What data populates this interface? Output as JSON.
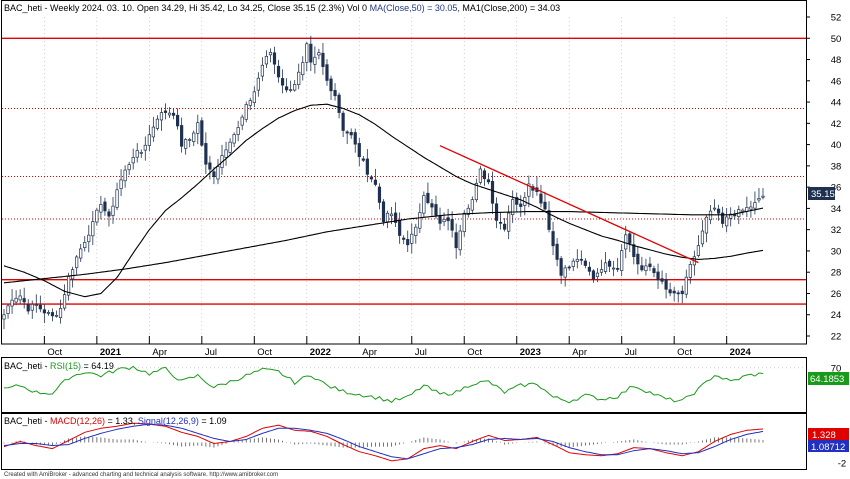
{
  "chart_data": {
    "type": "candlestick",
    "symbol": "BAC_heti",
    "header": {
      "prefix": "BAC_heti - Weekly 2024. 03. 10. Open 34.29, Hi 35.42, Lo 34.25, Close 35.15 (2.3%) Vol 0 ",
      "ma_label": "MA(Close,50) = 30.05,",
      "ma200_label": " MA1(Close,200) = 34.03"
    },
    "price_axis": {
      "ticks": [
        22,
        24,
        26,
        28,
        30,
        32,
        34,
        36,
        38,
        40,
        42,
        44,
        46,
        48,
        50,
        52
      ],
      "last_label": "35.15",
      "ymin": 20.5,
      "ymax": 53.5
    },
    "x_axis": {
      "labels": [
        {
          "text": "Oct",
          "week": 10,
          "bold": false
        },
        {
          "text": "2021",
          "week": 23,
          "bold": true
        },
        {
          "text": "Apr",
          "week": 36,
          "bold": false
        },
        {
          "text": "Jul",
          "week": 49,
          "bold": false
        },
        {
          "text": "Oct",
          "week": 62,
          "bold": false
        },
        {
          "text": "2022",
          "week": 75,
          "bold": true
        },
        {
          "text": "Apr",
          "week": 88,
          "bold": false
        },
        {
          "text": "Jul",
          "week": 101,
          "bold": false
        },
        {
          "text": "Oct",
          "week": 114,
          "bold": false
        },
        {
          "text": "2023",
          "week": 127,
          "bold": true
        },
        {
          "text": "Apr",
          "week": 140,
          "bold": false
        },
        {
          "text": "Jul",
          "week": 153,
          "bold": false
        },
        {
          "text": "Oct",
          "week": 166,
          "bold": false
        },
        {
          "text": "2024",
          "week": 179,
          "bold": true
        }
      ],
      "weeks": 189
    },
    "horizontal_levels": [
      {
        "value": 50.0,
        "style": "solid"
      },
      {
        "value": 43.4,
        "style": "dotted"
      },
      {
        "value": 37.0,
        "style": "dotted"
      },
      {
        "value": 33.0,
        "style": "dotted"
      },
      {
        "value": 27.3,
        "style": "solid"
      },
      {
        "value": 25.0,
        "style": "solid"
      }
    ],
    "trendline": {
      "from": {
        "week": 108,
        "value": 39.9
      },
      "to": {
        "week": 172,
        "value": 28.9
      }
    },
    "close_anchors": [
      [
        0,
        24.0
      ],
      [
        2,
        25.6
      ],
      [
        4,
        25.8
      ],
      [
        6,
        24.6
      ],
      [
        8,
        24.9
      ],
      [
        10,
        24.3
      ],
      [
        12,
        23.8
      ],
      [
        14,
        24.6
      ],
      [
        16,
        27.5
      ],
      [
        18,
        29.4
      ],
      [
        20,
        31.0
      ],
      [
        22,
        32.5
      ],
      [
        24,
        34.6
      ],
      [
        26,
        33.0
      ],
      [
        28,
        35.8
      ],
      [
        30,
        37.5
      ],
      [
        32,
        39.0
      ],
      [
        34,
        39.3
      ],
      [
        36,
        40.9
      ],
      [
        38,
        42.6
      ],
      [
        40,
        43.1
      ],
      [
        42,
        43.0
      ],
      [
        44,
        40.0
      ],
      [
        46,
        40.5
      ],
      [
        48,
        42.0
      ],
      [
        50,
        38.0
      ],
      [
        52,
        37.2
      ],
      [
        54,
        39.0
      ],
      [
        56,
        40.5
      ],
      [
        58,
        41.5
      ],
      [
        60,
        43.5
      ],
      [
        62,
        45.0
      ],
      [
        64,
        47.5
      ],
      [
        66,
        48.7
      ],
      [
        68,
        46.5
      ],
      [
        70,
        45.0
      ],
      [
        72,
        45.8
      ],
      [
        74,
        47.5
      ],
      [
        75,
        49.2
      ],
      [
        76,
        47.5
      ],
      [
        78,
        48.5
      ],
      [
        80,
        46.0
      ],
      [
        82,
        44.7
      ],
      [
        84,
        41.5
      ],
      [
        86,
        40.8
      ],
      [
        88,
        39.0
      ],
      [
        90,
        37.5
      ],
      [
        92,
        36.2
      ],
      [
        94,
        33.0
      ],
      [
        96,
        33.5
      ],
      [
        98,
        31.4
      ],
      [
        100,
        30.8
      ],
      [
        102,
        32.0
      ],
      [
        104,
        35.5
      ],
      [
        106,
        34.0
      ],
      [
        108,
        32.5
      ],
      [
        110,
        33.0
      ],
      [
        112,
        30.5
      ],
      [
        114,
        33.8
      ],
      [
        116,
        34.8
      ],
      [
        118,
        37.5
      ],
      [
        120,
        36.5
      ],
      [
        122,
        33.0
      ],
      [
        124,
        32.3
      ],
      [
        126,
        35.0
      ],
      [
        128,
        34.0
      ],
      [
        130,
        36.5
      ],
      [
        132,
        35.5
      ],
      [
        134,
        34.0
      ],
      [
        136,
        30.5
      ],
      [
        138,
        28.0
      ],
      [
        140,
        28.5
      ],
      [
        142,
        29.3
      ],
      [
        144,
        28.5
      ],
      [
        146,
        27.5
      ],
      [
        148,
        28.5
      ],
      [
        150,
        28.8
      ],
      [
        152,
        28.5
      ],
      [
        154,
        31.8
      ],
      [
        156,
        29.5
      ],
      [
        158,
        28.2
      ],
      [
        160,
        28.5
      ],
      [
        162,
        27.5
      ],
      [
        164,
        26.3
      ],
      [
        166,
        25.8
      ],
      [
        168,
        26.0
      ],
      [
        170,
        28.5
      ],
      [
        172,
        30.5
      ],
      [
        174,
        33.0
      ],
      [
        176,
        34.0
      ],
      [
        178,
        32.5
      ],
      [
        180,
        33.5
      ],
      [
        182,
        33.6
      ],
      [
        184,
        34.0
      ],
      [
        186,
        34.4
      ],
      [
        188,
        35.15
      ]
    ],
    "ma_50": [
      [
        0,
        28.6
      ],
      [
        5,
        28.0
      ],
      [
        10,
        27.2
      ],
      [
        15,
        26.2
      ],
      [
        20,
        25.7
      ],
      [
        24,
        26.0
      ],
      [
        28,
        27.5
      ],
      [
        32,
        29.8
      ],
      [
        36,
        32.0
      ],
      [
        40,
        33.8
      ],
      [
        44,
        35.0
      ],
      [
        48,
        36.3
      ],
      [
        52,
        37.7
      ],
      [
        56,
        39.0
      ],
      [
        60,
        40.4
      ],
      [
        64,
        41.5
      ],
      [
        68,
        42.5
      ],
      [
        72,
        43.2
      ],
      [
        76,
        43.7
      ],
      [
        80,
        43.8
      ],
      [
        84,
        43.4
      ],
      [
        88,
        42.8
      ],
      [
        92,
        41.9
      ],
      [
        96,
        40.8
      ],
      [
        100,
        39.8
      ],
      [
        104,
        38.8
      ],
      [
        108,
        37.9
      ],
      [
        112,
        37.0
      ],
      [
        116,
        36.3
      ],
      [
        120,
        35.8
      ],
      [
        124,
        35.3
      ],
      [
        128,
        34.8
      ],
      [
        132,
        34.1
      ],
      [
        136,
        33.3
      ],
      [
        140,
        32.6
      ],
      [
        144,
        32.0
      ],
      [
        148,
        31.4
      ],
      [
        152,
        31.0
      ],
      [
        156,
        30.5
      ],
      [
        160,
        30.1
      ],
      [
        164,
        29.7
      ],
      [
        168,
        29.4
      ],
      [
        172,
        29.2
      ],
      [
        176,
        29.3
      ],
      [
        180,
        29.5
      ],
      [
        184,
        29.8
      ],
      [
        188,
        30.05
      ]
    ],
    "ma_200": [
      [
        0,
        27.0
      ],
      [
        10,
        27.4
      ],
      [
        20,
        27.8
      ],
      [
        30,
        28.3
      ],
      [
        40,
        28.9
      ],
      [
        50,
        29.6
      ],
      [
        60,
        30.3
      ],
      [
        70,
        31.0
      ],
      [
        80,
        31.8
      ],
      [
        90,
        32.4
      ],
      [
        100,
        33.0
      ],
      [
        110,
        33.4
      ],
      [
        120,
        33.6
      ],
      [
        130,
        33.7
      ],
      [
        140,
        33.7
      ],
      [
        150,
        33.6
      ],
      [
        160,
        33.5
      ],
      [
        170,
        33.4
      ],
      [
        180,
        33.4
      ],
      [
        188,
        34.03
      ]
    ],
    "rsi": {
      "label_prefix": "BAC_heti - ",
      "label_name": "RSI(15)",
      "label_value": " = 64.19",
      "ticks": [
        70
      ],
      "last_label": "64.1853",
      "ymin": 25,
      "ymax": 80,
      "anchors": [
        [
          0,
          48
        ],
        [
          4,
          52
        ],
        [
          8,
          45
        ],
        [
          12,
          44
        ],
        [
          16,
          60
        ],
        [
          20,
          66
        ],
        [
          24,
          62
        ],
        [
          28,
          68
        ],
        [
          32,
          71
        ],
        [
          36,
          64
        ],
        [
          40,
          69
        ],
        [
          44,
          56
        ],
        [
          48,
          62
        ],
        [
          52,
          50
        ],
        [
          56,
          56
        ],
        [
          60,
          62
        ],
        [
          64,
          68
        ],
        [
          68,
          66
        ],
        [
          72,
          55
        ],
        [
          76,
          63
        ],
        [
          80,
          52
        ],
        [
          84,
          46
        ],
        [
          88,
          43
        ],
        [
          92,
          40
        ],
        [
          96,
          36
        ],
        [
          100,
          40
        ],
        [
          104,
          52
        ],
        [
          108,
          43
        ],
        [
          112,
          45
        ],
        [
          116,
          54
        ],
        [
          120,
          56
        ],
        [
          124,
          45
        ],
        [
          128,
          52
        ],
        [
          132,
          54
        ],
        [
          136,
          40
        ],
        [
          140,
          36
        ],
        [
          144,
          42
        ],
        [
          148,
          38
        ],
        [
          152,
          41
        ],
        [
          156,
          52
        ],
        [
          160,
          45
        ],
        [
          164,
          38
        ],
        [
          168,
          36
        ],
        [
          172,
          48
        ],
        [
          176,
          63
        ],
        [
          180,
          56
        ],
        [
          184,
          62
        ],
        [
          188,
          64.19
        ]
      ]
    },
    "macd": {
      "label_prefix": "BAC_heti - ",
      "label_macd": "MACD(12,26)",
      "label_macd_value": " = 1.33, ",
      "label_signal": "Signal(12,26,9)",
      "label_signal_value": " = 1.09",
      "ticks": [
        -2
      ],
      "last_macd_label": "1.328",
      "last_signal_label": "1.08712",
      "ymin": -2.6,
      "ymax": 2.8,
      "macd_anchors": [
        [
          0,
          -0.4
        ],
        [
          4,
          0.1
        ],
        [
          8,
          -0.3
        ],
        [
          12,
          -0.6
        ],
        [
          16,
          0.2
        ],
        [
          20,
          1.0
        ],
        [
          24,
          1.4
        ],
        [
          28,
          1.6
        ],
        [
          32,
          1.9
        ],
        [
          36,
          1.8
        ],
        [
          40,
          1.6
        ],
        [
          44,
          1.0
        ],
        [
          48,
          0.6
        ],
        [
          52,
          -0.1
        ],
        [
          56,
          0.1
        ],
        [
          60,
          0.6
        ],
        [
          64,
          1.4
        ],
        [
          68,
          1.7
        ],
        [
          72,
          1.2
        ],
        [
          76,
          1.1
        ],
        [
          80,
          0.6
        ],
        [
          84,
          -0.2
        ],
        [
          88,
          -0.9
        ],
        [
          92,
          -1.3
        ],
        [
          96,
          -1.8
        ],
        [
          100,
          -1.6
        ],
        [
          104,
          -0.6
        ],
        [
          108,
          -0.3
        ],
        [
          112,
          -0.6
        ],
        [
          116,
          0.1
        ],
        [
          120,
          0.7
        ],
        [
          124,
          0.2
        ],
        [
          128,
          0.3
        ],
        [
          132,
          0.5
        ],
        [
          136,
          -0.2
        ],
        [
          140,
          -1.0
        ],
        [
          144,
          -1.2
        ],
        [
          148,
          -1.3
        ],
        [
          152,
          -1.1
        ],
        [
          156,
          -0.5
        ],
        [
          160,
          -0.6
        ],
        [
          164,
          -1.0
        ],
        [
          168,
          -1.3
        ],
        [
          172,
          -0.9
        ],
        [
          176,
          0.1
        ],
        [
          180,
          0.8
        ],
        [
          184,
          1.2
        ],
        [
          188,
          1.33
        ]
      ],
      "signal_anchors": [
        [
          0,
          -0.3
        ],
        [
          4,
          -0.1
        ],
        [
          8,
          -0.1
        ],
        [
          12,
          -0.3
        ],
        [
          16,
          -0.2
        ],
        [
          20,
          0.4
        ],
        [
          24,
          0.9
        ],
        [
          28,
          1.3
        ],
        [
          32,
          1.6
        ],
        [
          36,
          1.8
        ],
        [
          40,
          1.7
        ],
        [
          44,
          1.4
        ],
        [
          48,
          0.9
        ],
        [
          52,
          0.4
        ],
        [
          56,
          0.1
        ],
        [
          60,
          0.3
        ],
        [
          64,
          0.9
        ],
        [
          68,
          1.4
        ],
        [
          72,
          1.4
        ],
        [
          76,
          1.2
        ],
        [
          80,
          0.9
        ],
        [
          84,
          0.3
        ],
        [
          88,
          -0.4
        ],
        [
          92,
          -0.9
        ],
        [
          96,
          -1.4
        ],
        [
          100,
          -1.6
        ],
        [
          104,
          -1.1
        ],
        [
          108,
          -0.6
        ],
        [
          112,
          -0.5
        ],
        [
          116,
          -0.2
        ],
        [
          120,
          0.3
        ],
        [
          124,
          0.4
        ],
        [
          128,
          0.3
        ],
        [
          132,
          0.4
        ],
        [
          136,
          0.1
        ],
        [
          140,
          -0.5
        ],
        [
          144,
          -0.9
        ],
        [
          148,
          -1.2
        ],
        [
          152,
          -1.2
        ],
        [
          156,
          -0.8
        ],
        [
          160,
          -0.6
        ],
        [
          164,
          -0.8
        ],
        [
          168,
          -1.1
        ],
        [
          172,
          -1.0
        ],
        [
          176,
          -0.4
        ],
        [
          180,
          0.3
        ],
        [
          184,
          0.8
        ],
        [
          188,
          1.09
        ]
      ]
    },
    "footer": "Created with AmiBroker - advanced charting and technical analysis software. http://www.amibroker.com",
    "colors": {
      "candle": "#1f3150",
      "level_line": "#e00000",
      "trendline": "#e00000",
      "ma_line": "#000000",
      "rsi_line": "#1a9a1a",
      "rsi_label_bg": "#1a9a1a",
      "macd_line": "#e00000",
      "signal_line": "#2030c0",
      "price_label_bg": "#1f3150",
      "macd_label_bg": "#e00000",
      "signal_label_bg": "#2030c0",
      "grid": "#b0b0b0"
    }
  }
}
